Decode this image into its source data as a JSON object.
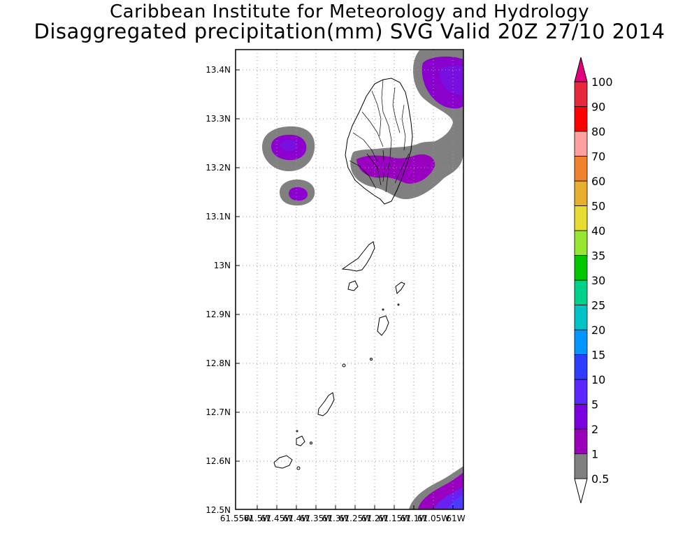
{
  "header": {
    "title_line1": "Caribbean Institute for Meteorology and Hydrology",
    "title_line2": "Disaggregated precipitation(mm) SVG Valid 20Z 27/10 2014"
  },
  "map": {
    "lat_labels": [
      "13.4N",
      "13.3N",
      "13.2N",
      "13.1N",
      "13N",
      "12.9N",
      "12.8N",
      "12.7N",
      "12.6N",
      "12.5N"
    ],
    "lon_labels": [
      "61.55W",
      "61.5W",
      "61.45W",
      "61.4W",
      "61.35W",
      "61.3W",
      "61.25W",
      "61.2W",
      "61.15W",
      "61.1W",
      "61.05W",
      "61W"
    ],
    "lat_range": [
      12.5,
      13.44
    ],
    "lon_range": [
      -61.55,
      -61.0
    ]
  },
  "colorbar": {
    "levels": [
      "0.5",
      "1",
      "2",
      "5",
      "10",
      "15",
      "20",
      "25",
      "30",
      "35",
      "40",
      "50",
      "60",
      "70",
      "80",
      "90",
      "100"
    ],
    "colors": [
      "#808080",
      "#9a00b8",
      "#7a00e0",
      "#5a28ff",
      "#2d3cff",
      "#0096ff",
      "#00c3c8",
      "#00d28c",
      "#00c800",
      "#96e632",
      "#e6dc32",
      "#e6af2d",
      "#f0822d",
      "#ffa0a0",
      "#ff0000",
      "#e6283c",
      "#e6007d"
    ]
  }
}
